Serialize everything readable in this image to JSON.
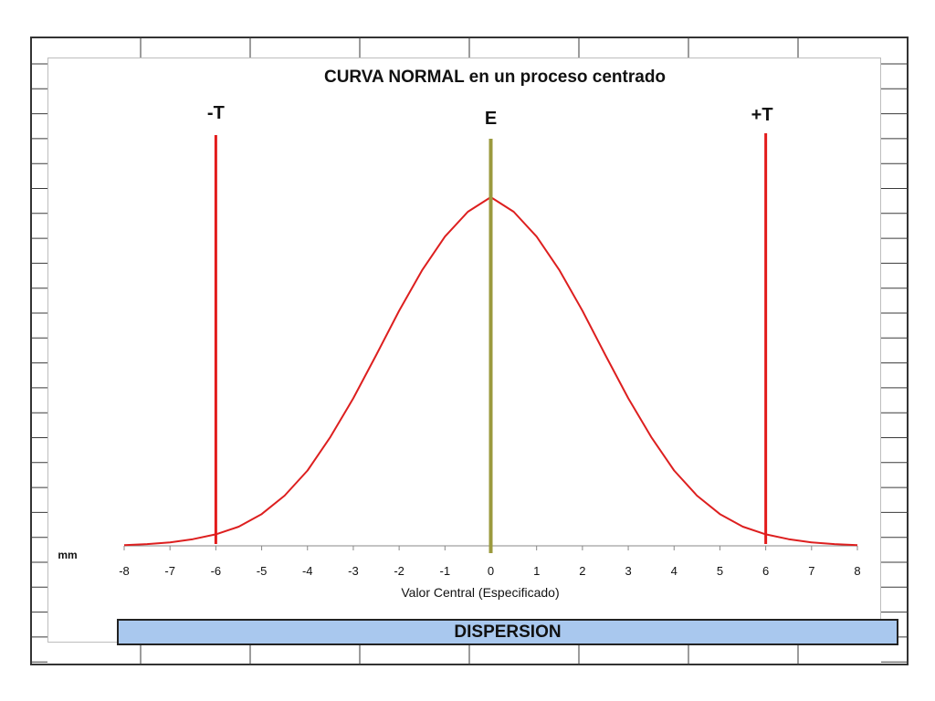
{
  "chart_data": {
    "type": "line",
    "title": "CURVA NORMAL en un proceso centrado",
    "xlabel": "Valor Central (Especificado)",
    "unit_label": "mm",
    "xlim": [
      -8,
      8
    ],
    "xticks": [
      "-8",
      "-7",
      "-6",
      "-5",
      "-4",
      "-3",
      "-2",
      "-1",
      "0",
      "1",
      "2",
      "3",
      "4",
      "5",
      "6",
      "7",
      "8"
    ],
    "curve": {
      "x": [
        -8,
        -7.5,
        -7,
        -6.5,
        -6,
        -5.5,
        -5,
        -4.5,
        -4,
        -3.5,
        -3,
        -2.5,
        -2,
        -1.5,
        -1,
        -0.5,
        0,
        0.5,
        1,
        1.5,
        2,
        2.5,
        3,
        3.5,
        4,
        4.5,
        5,
        5.5,
        6,
        6.5,
        7,
        7.5,
        8
      ],
      "y": [
        0.002,
        0.005,
        0.01,
        0.019,
        0.033,
        0.055,
        0.091,
        0.144,
        0.216,
        0.312,
        0.423,
        0.547,
        0.674,
        0.79,
        0.887,
        0.958,
        1.0,
        0.958,
        0.887,
        0.79,
        0.674,
        0.547,
        0.423,
        0.312,
        0.216,
        0.144,
        0.091,
        0.055,
        0.033,
        0.019,
        0.01,
        0.005,
        0.002
      ],
      "color": "#dd1f1f"
    },
    "markers": [
      {
        "label": "-T",
        "x": -6,
        "color": "#e31b1b"
      },
      {
        "label": "E",
        "x": 0,
        "color": "#9b9a3e"
      },
      {
        "label": "+T",
        "x": 6,
        "color": "#e31b1b"
      }
    ]
  },
  "footer": {
    "banner_label": "DISPERSION",
    "banner_color": "#a9c8ee"
  }
}
